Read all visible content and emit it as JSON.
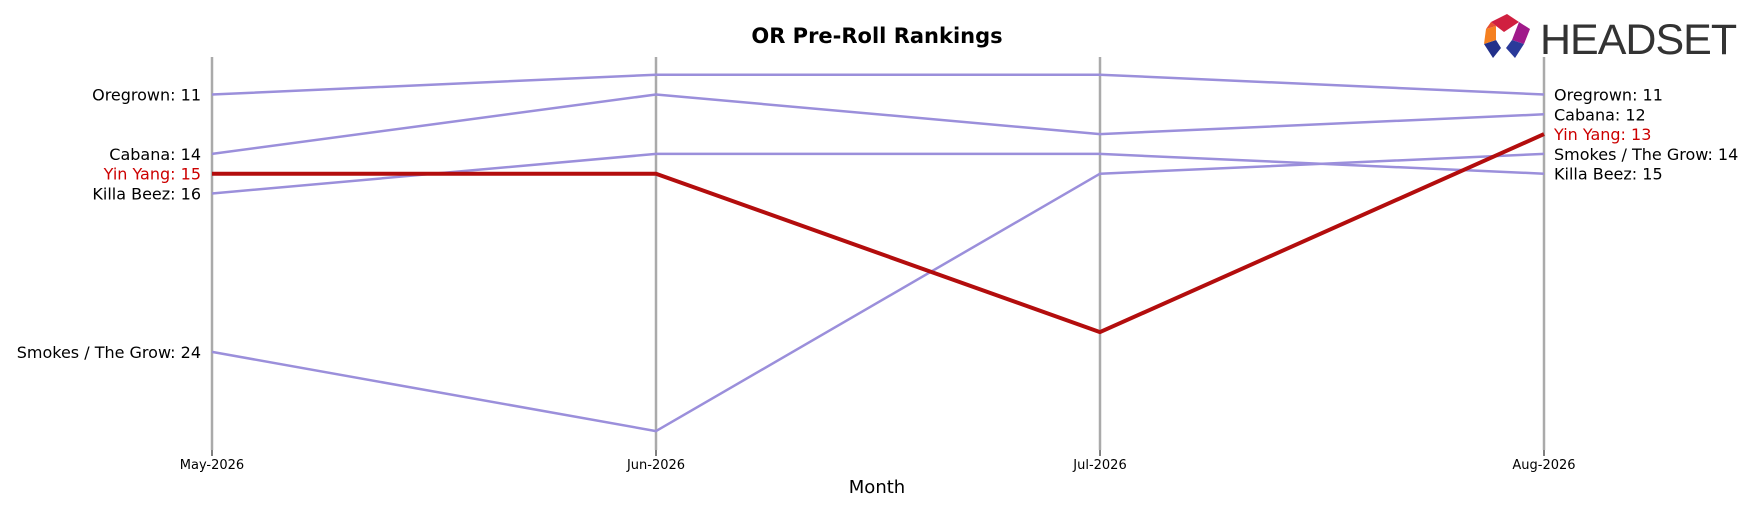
{
  "chart_data": {
    "type": "line",
    "title": "OR Pre-Roll Rankings",
    "xlabel": "Month",
    "ylabel": "",
    "x": [
      "May-2026",
      "Jun-2026",
      "Jul-2026",
      "Aug-2026"
    ],
    "y_inverted": true,
    "ylim": [
      9,
      29
    ],
    "series": [
      {
        "name": "Oregrown",
        "values": [
          11,
          10,
          10,
          11
        ],
        "highlight": false
      },
      {
        "name": "Cabana",
        "values": [
          14,
          11,
          13,
          12
        ],
        "highlight": false
      },
      {
        "name": "Yin Yang",
        "values": [
          15,
          15,
          23,
          13
        ],
        "highlight": true
      },
      {
        "name": "Killa Beez",
        "values": [
          16,
          14,
          14,
          15
        ],
        "highlight": false
      },
      {
        "name": "Smokes / The Grow",
        "values": [
          24,
          28,
          15,
          14
        ],
        "highlight": false
      }
    ],
    "left_labels": [
      {
        "text": "Oregrown: 11",
        "series": "Oregrown"
      },
      {
        "text": "Cabana: 14",
        "series": "Cabana"
      },
      {
        "text": "Yin Yang: 15",
        "series": "Yin Yang"
      },
      {
        "text": "Killa Beez: 16",
        "series": "Killa Beez"
      },
      {
        "text": "Smokes / The Grow: 24",
        "series": "Smokes / The Grow"
      }
    ],
    "right_labels": [
      {
        "text": "Oregrown: 11",
        "series": "Oregrown"
      },
      {
        "text": "Cabana: 12",
        "series": "Cabana"
      },
      {
        "text": "Yin Yang: 13",
        "series": "Yin Yang"
      },
      {
        "text": "Smokes / The Grow: 14",
        "series": "Smokes / The Grow"
      },
      {
        "text": "Killa Beez: 15",
        "series": "Killa Beez"
      }
    ],
    "grid": "vertical",
    "colors": {
      "default_line": "#9b8fdb",
      "highlight_line": "#b30d0d",
      "highlight_text": "#cc0000",
      "axis_line": "#aaaaaa",
      "text": "#000000"
    }
  },
  "logo": {
    "text": "HEADSET",
    "icon": "headset-hexagon-icon"
  }
}
